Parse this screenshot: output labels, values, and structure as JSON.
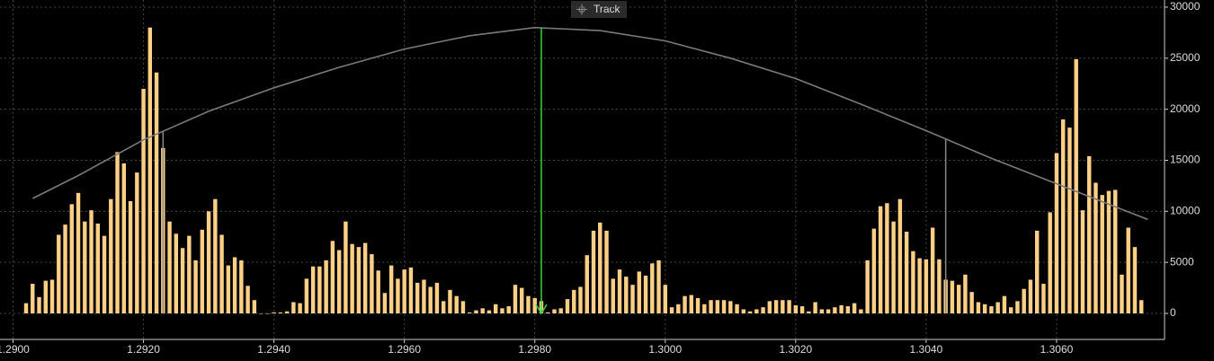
{
  "chart_data": {
    "type": "bar",
    "legend": "Track",
    "bar_color": "#fdd085",
    "curve_color": "#7a7a7a",
    "arrow": {
      "x": 1.2981,
      "color": "#3ecf3e"
    },
    "range_lines": [
      1.2923,
      1.3043
    ],
    "x": [
      1.2902,
      1.2903,
      1.2904,
      1.2905,
      1.2906,
      1.2907,
      1.2908,
      1.2909,
      1.291,
      1.2911,
      1.2912,
      1.2913,
      1.2914,
      1.2915,
      1.2916,
      1.2917,
      1.2918,
      1.2919,
      1.292,
      1.2921,
      1.2922,
      1.2923,
      1.2924,
      1.2925,
      1.2926,
      1.2927,
      1.2928,
      1.2929,
      1.293,
      1.2931,
      1.2932,
      1.2933,
      1.2934,
      1.2935,
      1.2936,
      1.2937,
      1.2938,
      1.2939,
      1.294,
      1.2941,
      1.2942,
      1.2943,
      1.2944,
      1.2945,
      1.2946,
      1.2947,
      1.2948,
      1.2949,
      1.295,
      1.2951,
      1.2952,
      1.2953,
      1.2954,
      1.2955,
      1.2956,
      1.2957,
      1.2958,
      1.2959,
      1.296,
      1.2961,
      1.2962,
      1.2963,
      1.2964,
      1.2965,
      1.2966,
      1.2967,
      1.2968,
      1.2969,
      1.297,
      1.2971,
      1.2972,
      1.2973,
      1.2974,
      1.2975,
      1.2976,
      1.2977,
      1.2978,
      1.2979,
      1.298,
      1.2981,
      1.2982,
      1.2983,
      1.2984,
      1.2985,
      1.2986,
      1.2987,
      1.2988,
      1.2989,
      1.299,
      1.2991,
      1.2992,
      1.2993,
      1.2994,
      1.2995,
      1.2996,
      1.2997,
      1.2998,
      1.2999,
      1.3,
      1.3001,
      1.3002,
      1.3003,
      1.3004,
      1.3005,
      1.3006,
      1.3007,
      1.3008,
      1.3009,
      1.301,
      1.3011,
      1.3012,
      1.3013,
      1.3014,
      1.3015,
      1.3016,
      1.3017,
      1.3018,
      1.3019,
      1.302,
      1.3021,
      1.3022,
      1.3023,
      1.3024,
      1.3025,
      1.3026,
      1.3027,
      1.3028,
      1.3029,
      1.303,
      1.3031,
      1.3032,
      1.3033,
      1.3034,
      1.3035,
      1.3036,
      1.3037,
      1.3038,
      1.3039,
      1.304,
      1.3041,
      1.3042,
      1.3043,
      1.3044,
      1.3045,
      1.3046,
      1.3047,
      1.3048,
      1.3049,
      1.305,
      1.3051,
      1.3052,
      1.3053,
      1.3054,
      1.3055,
      1.3056,
      1.3057,
      1.3058,
      1.3059,
      1.306,
      1.3061,
      1.3062,
      1.3063,
      1.3064,
      1.3065,
      1.3066,
      1.3067,
      1.3068,
      1.3069,
      1.307,
      1.3071,
      1.3072,
      1.3073
    ],
    "values": [
      1000,
      2900,
      1600,
      3200,
      3300,
      7700,
      8700,
      10700,
      11800,
      9000,
      10100,
      8800,
      7600,
      11200,
      15800,
      14700,
      11000,
      13800,
      22000,
      28000,
      23600,
      16200,
      9000,
      7800,
      6400,
      7600,
      5200,
      8200,
      10000,
      11200,
      7700,
      4700,
      5500,
      5200,
      2700,
      1300,
      0,
      0,
      100,
      100,
      200,
      1100,
      1000,
      3400,
      4600,
      4600,
      5200,
      7100,
      6200,
      9000,
      6800,
      6500,
      6900,
      5800,
      4200,
      2000,
      4700,
      3400,
      4300,
      4500,
      3000,
      3300,
      2600,
      3000,
      1200,
      2300,
      1700,
      1200,
      100,
      300,
      500,
      300,
      900,
      500,
      700,
      2800,
      2500,
      1700,
      1500,
      1200,
      100,
      400,
      500,
      1400,
      2300,
      2600,
      5700,
      8100,
      8900,
      8100,
      3400,
      4300,
      3600,
      2800,
      4100,
      3700,
      4900,
      5200,
      2800,
      600,
      900,
      1700,
      1800,
      1500,
      900,
      1300,
      1300,
      1300,
      1200,
      900,
      400,
      200,
      400,
      600,
      1200,
      1300,
      1300,
      1300,
      800,
      700,
      200,
      1100,
      400,
      400,
      600,
      800,
      700,
      1000,
      400,
      5200,
      8300,
      10500,
      10800,
      9000,
      11200,
      8000,
      6100,
      5400,
      5300,
      8400,
      5300,
      3300,
      3200,
      2800,
      3800,
      2100,
      1100,
      900,
      700,
      1100,
      1700,
      600,
      1200,
      2400,
      3300,
      8100,
      2900,
      9900,
      15700,
      19000,
      18200,
      24900,
      10100,
      15400,
      12800,
      11600,
      12000,
      12100,
      3800,
      8400,
      6500,
      1300
    ],
    "curve": {
      "x": [
        1.2903,
        1.291,
        1.292,
        1.293,
        1.294,
        1.295,
        1.296,
        1.297,
        1.298,
        1.299,
        1.3,
        1.301,
        1.302,
        1.303,
        1.304,
        1.305,
        1.306,
        1.307,
        1.3074
      ],
      "values": [
        11260,
        13500,
        17000,
        19800,
        22100,
        24100,
        25900,
        27200,
        28000,
        27700,
        26700,
        25000,
        23000,
        20500,
        17900,
        15200,
        12700,
        10200,
        9200
      ]
    },
    "xlim": [
      1.2898,
      1.3076
    ],
    "ylim": [
      -2550,
      30700
    ],
    "xticks": [
      {
        "value": 1.29,
        "label": "1.2900"
      },
      {
        "value": 1.292,
        "label": "1.2920"
      },
      {
        "value": 1.294,
        "label": "1.2940"
      },
      {
        "value": 1.296,
        "label": "1.2960"
      },
      {
        "value": 1.298,
        "label": "1.2980"
      },
      {
        "value": 1.3,
        "label": "1.3000"
      },
      {
        "value": 1.302,
        "label": "1.3020"
      },
      {
        "value": 1.304,
        "label": "1.3040"
      },
      {
        "value": 1.306,
        "label": "1.3060"
      }
    ],
    "yticks": [
      0,
      5000,
      10000,
      15000,
      20000,
      25000,
      30000
    ],
    "grid": true
  }
}
